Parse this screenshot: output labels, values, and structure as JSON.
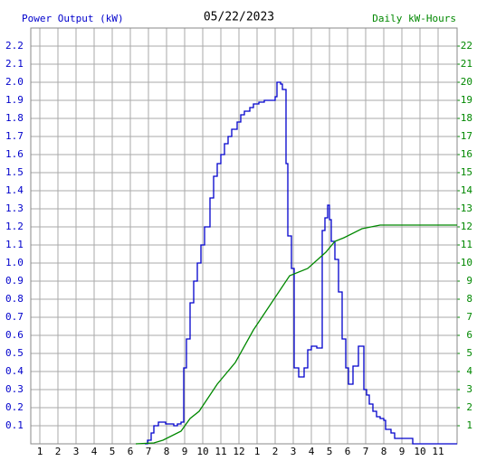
{
  "chart_data": {
    "type": "line",
    "title": "05/22/2023",
    "ylabel": "Power Output (kW)",
    "y2label": "Daily kW-Hours",
    "xlim": [
      0.5,
      24.05
    ],
    "xticks": [
      1,
      2,
      3,
      4,
      5,
      6,
      7,
      8,
      9,
      10,
      11,
      12,
      {
        "value": 13,
        "label": "1"
      },
      {
        "value": 14,
        "label": "2"
      },
      {
        "value": 15,
        "label": "3"
      },
      {
        "value": 16,
        "label": "4"
      },
      {
        "value": 17,
        "label": "5"
      },
      {
        "value": 18,
        "label": "6"
      },
      {
        "value": 19,
        "label": "7"
      },
      {
        "value": 20,
        "label": "8"
      },
      {
        "value": 21,
        "label": "9"
      },
      {
        "value": 22,
        "label": "10"
      },
      {
        "value": 23,
        "label": "11"
      }
    ],
    "ylim": [
      0,
      2.3
    ],
    "yticks": [
      0.1,
      0.2,
      0.3,
      0.4,
      0.5,
      0.6,
      0.7,
      0.8,
      0.9,
      {
        "value": 1,
        "label": "1.0"
      },
      1.1,
      1.2,
      1.3,
      1.4,
      1.5,
      1.6,
      1.7,
      1.8,
      1.9,
      {
        "value": 2,
        "label": "2.0"
      },
      2.1,
      2.2
    ],
    "y2lim": [
      0,
      23
    ],
    "y2ticks": [
      1,
      2,
      3,
      4,
      5,
      6,
      7,
      8,
      9,
      10,
      11,
      12,
      13,
      14,
      15,
      16,
      17,
      18,
      19,
      20,
      21,
      22
    ],
    "grid": true,
    "series": [
      {
        "color": "#0000cc",
        "step": true,
        "x": [
          6.8,
          6.95,
          7.15,
          7.3,
          7.55,
          7.95,
          8.2,
          8.4,
          8.6,
          8.8,
          8.95,
          9.1,
          9.3,
          9.5,
          9.7,
          9.9,
          10.1,
          10.4,
          10.6,
          10.8,
          11.0,
          11.2,
          11.4,
          11.6,
          11.9,
          12.1,
          12.3,
          12.6,
          12.8,
          13.1,
          13.4,
          14.0,
          14.1,
          14.3,
          14.4,
          14.6,
          14.7,
          14.9,
          15.05,
          15.3,
          15.6,
          15.8,
          16.0,
          16.3,
          16.6,
          16.75,
          16.9,
          17.0,
          17.1,
          17.3,
          17.5,
          17.7,
          17.9,
          18.05,
          18.3,
          18.6,
          18.9,
          19.05,
          19.2,
          19.4,
          19.6,
          19.8,
          20.0,
          20.1,
          20.4,
          20.6,
          21.6
        ],
        "values": [
          0,
          0.02,
          0.06,
          0.1,
          0.12,
          0.11,
          0.11,
          0.1,
          0.11,
          0.12,
          0.42,
          0.58,
          0.78,
          0.9,
          1.0,
          1.1,
          1.2,
          1.36,
          1.48,
          1.55,
          1.6,
          1.66,
          1.7,
          1.74,
          1.78,
          1.82,
          1.84,
          1.86,
          1.88,
          1.89,
          1.9,
          1.92,
          2.0,
          1.99,
          1.96,
          1.55,
          1.15,
          0.97,
          0.42,
          0.37,
          0.42,
          0.52,
          0.54,
          0.53,
          1.18,
          1.25,
          1.32,
          1.24,
          1.12,
          1.02,
          0.84,
          0.58,
          0.42,
          0.33,
          0.43,
          0.54,
          0.3,
          0.27,
          0.22,
          0.18,
          0.15,
          0.14,
          0.13,
          0.08,
          0.06,
          0.03,
          0
        ]
      },
      {
        "color": "#008800",
        "axis": "y2",
        "step": false,
        "x": [
          6.3,
          7.3,
          7.8,
          8.8,
          9.3,
          9.8,
          10.8,
          11.8,
          12.8,
          13.8,
          14.8,
          15.8,
          16.8,
          17.3,
          17.8,
          18.8,
          19.8,
          24.05
        ],
        "values": [
          0,
          0.05,
          0.2,
          0.7,
          1.4,
          1.8,
          3.3,
          4.5,
          6.3,
          7.8,
          9.3,
          9.7,
          10.6,
          11.2,
          11.4,
          11.9,
          12.1,
          12.1
        ]
      }
    ]
  }
}
